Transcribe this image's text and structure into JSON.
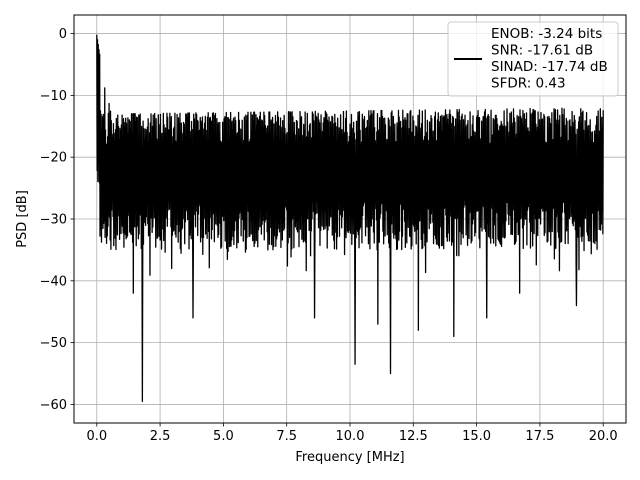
{
  "chart_data": {
    "type": "line",
    "title": "",
    "xlabel": "Frequency [MHz]",
    "ylabel": "PSD [dB]",
    "xlim": [
      -0.9,
      20.9
    ],
    "ylim": [
      -63,
      3
    ],
    "xticks": [
      0.0,
      2.5,
      5.0,
      7.5,
      10.0,
      12.5,
      15.0,
      17.5,
      20.0
    ],
    "xtick_labels": [
      "0.0",
      "2.5",
      "5.0",
      "7.5",
      "10.0",
      "12.5",
      "15.0",
      "17.5",
      "20.0"
    ],
    "yticks": [
      0,
      -10,
      -20,
      -30,
      -40,
      -50,
      -60
    ],
    "ytick_labels": [
      "0",
      "−10",
      "−20",
      "−30",
      "−40",
      "−50",
      "−60"
    ],
    "grid": true,
    "legend_position": "top-right",
    "legend_lines": [
      "ENOB: -3.24 bits",
      "SNR: -17.61 dB",
      "SINAD: -17.74 dB",
      "SFDR: 0.43"
    ],
    "series_color": "#000000",
    "series": [
      {
        "x_start": 0.0,
        "x_end": 20.0,
        "baseline_db": -23.5,
        "peak_band_db": [
          -18,
          -12
        ],
        "trough_band_db": [
          -35,
          -27
        ],
        "envelope": [
          {
            "x": 0.0,
            "y": -0.2
          },
          {
            "x": 0.1,
            "y": -3.0
          },
          {
            "x": 0.4,
            "y": -10.0
          },
          {
            "x": 1.0,
            "y": -13.0
          },
          {
            "x": 20.0,
            "y": -12.0
          }
        ],
        "spikes": [
          {
            "x": 1.45,
            "y": -42.0
          },
          {
            "x": 1.8,
            "y": -59.5
          },
          {
            "x": 3.8,
            "y": -46.0
          },
          {
            "x": 8.6,
            "y": -46.0
          },
          {
            "x": 10.2,
            "y": -53.5
          },
          {
            "x": 11.1,
            "y": -47.0
          },
          {
            "x": 11.6,
            "y": -55.0
          },
          {
            "x": 12.7,
            "y": -48.0
          },
          {
            "x": 14.1,
            "y": -49.0
          },
          {
            "x": 15.4,
            "y": -46.0
          },
          {
            "x": 16.7,
            "y": -42.0
          },
          {
            "x": 18.95,
            "y": -44.0
          }
        ]
      }
    ]
  }
}
